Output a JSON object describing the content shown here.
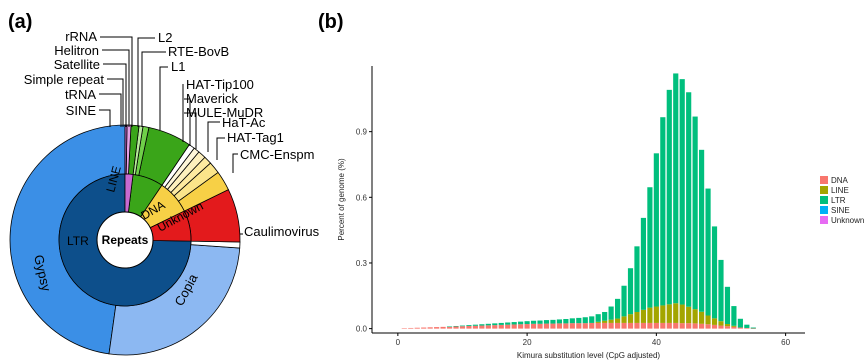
{
  "panels": {
    "a": "(a)",
    "b": "(b)"
  },
  "chart_data": [
    {
      "type": "pie",
      "center_label": "Repeats",
      "inner_ring": [
        {
          "label": "LTR",
          "color": "#0d4f8b"
        },
        {
          "label": "LINE",
          "color": "#3aa519"
        },
        {
          "label": "DNA",
          "color": "#f7d046"
        },
        {
          "label": "Unknown",
          "color": "#e31a1c"
        }
      ],
      "outer_ring": [
        {
          "label": "Gypsy",
          "color": "#3b8fe6"
        },
        {
          "label": "Copia",
          "color": "#8cb8f2"
        },
        {
          "label": "Caulimovirus",
          "color": "#ffffff"
        }
      ],
      "callouts": [
        {
          "label": "rRNA"
        },
        {
          "label": "Helitron"
        },
        {
          "label": "Satellite"
        },
        {
          "label": "Simple repeat"
        },
        {
          "label": "tRNA"
        },
        {
          "label": "SINE"
        },
        {
          "label": "L2"
        },
        {
          "label": "RTE-BovB"
        },
        {
          "label": "L1"
        },
        {
          "label": "HAT-Tip100"
        },
        {
          "label": "Maverick"
        },
        {
          "label": "MULE-MuDR"
        },
        {
          "label": "HaT-Ac"
        },
        {
          "label": "HAT-Tag1"
        },
        {
          "label": "CMC-Enspm"
        }
      ]
    },
    {
      "type": "bar",
      "stacked": true,
      "xlabel": "Kimura substitution level (CpG adjusted)",
      "ylabel": "Percent of genome (%)",
      "xlim": [
        -4,
        63
      ],
      "ylim": [
        -0.02,
        1.2
      ],
      "x_ticks": [
        0,
        20,
        40,
        60
      ],
      "y_ticks": [
        "0.0",
        "0.3",
        "0.6",
        "0.9"
      ],
      "y_tick_values": [
        0,
        0.3,
        0.6,
        0.9
      ],
      "legend_position": "right",
      "x": [
        1,
        2,
        3,
        4,
        5,
        6,
        7,
        8,
        9,
        10,
        11,
        12,
        13,
        14,
        15,
        16,
        17,
        18,
        19,
        20,
        21,
        22,
        23,
        24,
        25,
        26,
        27,
        28,
        29,
        30,
        31,
        32,
        33,
        34,
        35,
        36,
        37,
        38,
        39,
        40,
        41,
        42,
        43,
        44,
        45,
        46,
        47,
        48,
        49,
        50,
        51,
        52,
        53,
        54,
        55
      ],
      "series": [
        {
          "name": "DNA",
          "color": "#f8766d",
          "values": [
            0.002,
            0.003,
            0.004,
            0.005,
            0.006,
            0.007,
            0.008,
            0.009,
            0.01,
            0.011,
            0.012,
            0.013,
            0.014,
            0.015,
            0.016,
            0.017,
            0.018,
            0.019,
            0.02,
            0.021,
            0.022,
            0.022,
            0.023,
            0.023,
            0.024,
            0.024,
            0.025,
            0.025,
            0.025,
            0.026,
            0.026,
            0.026,
            0.026,
            0.026,
            0.026,
            0.026,
            0.026,
            0.026,
            0.026,
            0.026,
            0.026,
            0.026,
            0.026,
            0.025,
            0.025,
            0.024,
            0.022,
            0.02,
            0.017,
            0.014,
            0.011,
            0.008,
            0.005,
            0.003,
            0.001
          ]
        },
        {
          "name": "LINE",
          "color": "#a3a500",
          "values": [
            0,
            0,
            0,
            0,
            0,
            0,
            0,
            0,
            0,
            0,
            0,
            0,
            0,
            0,
            0,
            0,
            0,
            0,
            0,
            0,
            0,
            0,
            0,
            0,
            0,
            0,
            0,
            0,
            0,
            0,
            0.005,
            0.01,
            0.015,
            0.02,
            0.03,
            0.04,
            0.05,
            0.06,
            0.07,
            0.075,
            0.08,
            0.085,
            0.09,
            0.085,
            0.075,
            0.065,
            0.055,
            0.04,
            0.03,
            0.02,
            0.01,
            0.005,
            0,
            0,
            0
          ]
        },
        {
          "name": "LTR",
          "color": "#00bf7d",
          "values": [
            0,
            0,
            0,
            0,
            0,
            0,
            0,
            0.001,
            0.002,
            0.003,
            0.004,
            0.005,
            0.006,
            0.007,
            0.008,
            0.009,
            0.01,
            0.011,
            0.012,
            0.013,
            0.014,
            0.015,
            0.016,
            0.017,
            0.018,
            0.02,
            0.022,
            0.024,
            0.027,
            0.03,
            0.035,
            0.04,
            0.06,
            0.09,
            0.14,
            0.21,
            0.3,
            0.42,
            0.55,
            0.7,
            0.86,
            0.98,
            1.05,
            1.03,
            0.98,
            0.88,
            0.74,
            0.58,
            0.42,
            0.28,
            0.17,
            0.09,
            0.04,
            0.015,
            0.004
          ]
        },
        {
          "name": "SINE",
          "color": "#00b0f6",
          "values": [
            0,
            0,
            0,
            0,
            0,
            0,
            0,
            0,
            0,
            0,
            0,
            0,
            0,
            0,
            0,
            0,
            0,
            0,
            0,
            0,
            0,
            0,
            0,
            0,
            0,
            0,
            0,
            0,
            0,
            0,
            0,
            0,
            0,
            0,
            0,
            0,
            0,
            0,
            0,
            0,
            0,
            0,
            0,
            0,
            0,
            0,
            0,
            0,
            0,
            0,
            0,
            0,
            0,
            0,
            0
          ]
        },
        {
          "name": "Unknown",
          "color": "#e76bf3",
          "values": [
            0,
            0,
            0,
            0,
            0,
            0,
            0,
            0,
            0,
            0,
            0,
            0,
            0,
            0,
            0,
            0,
            0,
            0,
            0,
            0,
            0,
            0,
            0,
            0,
            0,
            0,
            0,
            0,
            0,
            0,
            0,
            0,
            0,
            0,
            0,
            0,
            0,
            0,
            0,
            0,
            0,
            0,
            0,
            0,
            0,
            0,
            0,
            0,
            0,
            0,
            0,
            0,
            0,
            0,
            0
          ]
        }
      ]
    }
  ]
}
